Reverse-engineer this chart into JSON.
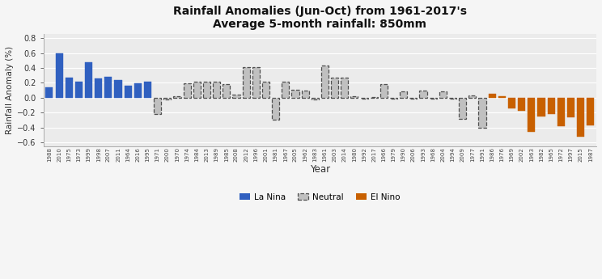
{
  "title_line1": "Rainfall Anomalies (Jun-Oct) from 1961-2017's",
  "title_line2": "Average 5-month rainfall: 850mm",
  "xlabel": "Year",
  "ylabel": "Rainfall Anomaly (%)",
  "ylim": [
    -0.65,
    0.85
  ],
  "yticks": [
    -0.6,
    -0.4,
    -0.2,
    0.0,
    0.2,
    0.4,
    0.6,
    0.8
  ],
  "background_color": "#ebebeb",
  "fig_facecolor": "#f5f5f5",
  "la_nina_color": "#3060c0",
  "el_nino_color": "#c86000",
  "neutral_facecolor": "#c0c0c0",
  "neutral_edgecolor": "#505050",
  "bars": [
    {
      "year": "1988",
      "value": 0.14,
      "type": "la_nina"
    },
    {
      "year": "2010",
      "value": 0.6,
      "type": "la_nina"
    },
    {
      "year": "1975",
      "value": 0.27,
      "type": "la_nina"
    },
    {
      "year": "1973",
      "value": 0.21,
      "type": "la_nina"
    },
    {
      "year": "1999",
      "value": 0.47,
      "type": "la_nina"
    },
    {
      "year": "1998",
      "value": 0.26,
      "type": "la_nina"
    },
    {
      "year": "2007",
      "value": 0.28,
      "type": "la_nina"
    },
    {
      "year": "2011",
      "value": 0.24,
      "type": "la_nina"
    },
    {
      "year": "1964",
      "value": 0.16,
      "type": "la_nina"
    },
    {
      "year": "2016",
      "value": 0.19,
      "type": "la_nina"
    },
    {
      "year": "1995",
      "value": 0.22,
      "type": "la_nina"
    },
    {
      "year": "1971",
      "value": -0.22,
      "type": "neutral"
    },
    {
      "year": "2000",
      "value": -0.02,
      "type": "neutral"
    },
    {
      "year": "1970",
      "value": 0.02,
      "type": "neutral"
    },
    {
      "year": "1974",
      "value": 0.19,
      "type": "neutral"
    },
    {
      "year": "1984",
      "value": 0.22,
      "type": "neutral"
    },
    {
      "year": "2013",
      "value": 0.22,
      "type": "neutral"
    },
    {
      "year": "1989",
      "value": 0.21,
      "type": "neutral"
    },
    {
      "year": "1985",
      "value": 0.18,
      "type": "neutral"
    },
    {
      "year": "2008",
      "value": 0.04,
      "type": "neutral"
    },
    {
      "year": "2012",
      "value": 0.41,
      "type": "neutral"
    },
    {
      "year": "1996",
      "value": 0.41,
      "type": "neutral"
    },
    {
      "year": "2001",
      "value": 0.22,
      "type": "neutral"
    },
    {
      "year": "1981",
      "value": -0.3,
      "type": "neutral"
    },
    {
      "year": "1967",
      "value": 0.22,
      "type": "neutral"
    },
    {
      "year": "2005",
      "value": 0.11,
      "type": "neutral"
    },
    {
      "year": "1962",
      "value": 0.1,
      "type": "neutral"
    },
    {
      "year": "1983",
      "value": -0.02,
      "type": "neutral"
    },
    {
      "year": "1961",
      "value": 0.43,
      "type": "neutral"
    },
    {
      "year": "2003",
      "value": 0.27,
      "type": "neutral"
    },
    {
      "year": "2014",
      "value": 0.27,
      "type": "neutral"
    },
    {
      "year": "1980",
      "value": 0.02,
      "type": "neutral"
    },
    {
      "year": "1992",
      "value": -0.01,
      "type": "neutral"
    },
    {
      "year": "2017",
      "value": 0.01,
      "type": "neutral"
    },
    {
      "year": "1966",
      "value": 0.18,
      "type": "neutral"
    },
    {
      "year": "1979",
      "value": -0.01,
      "type": "neutral"
    },
    {
      "year": "1990",
      "value": 0.09,
      "type": "neutral"
    },
    {
      "year": "2006",
      "value": -0.01,
      "type": "neutral"
    },
    {
      "year": "1993",
      "value": 0.1,
      "type": "neutral"
    },
    {
      "year": "1968",
      "value": -0.01,
      "type": "neutral"
    },
    {
      "year": "2004",
      "value": 0.08,
      "type": "neutral"
    },
    {
      "year": "1994",
      "value": -0.01,
      "type": "neutral"
    },
    {
      "year": "2009",
      "value": -0.28,
      "type": "neutral"
    },
    {
      "year": "1977",
      "value": 0.03,
      "type": "neutral"
    },
    {
      "year": "1991",
      "value": -0.4,
      "type": "neutral"
    },
    {
      "year": "1986",
      "value": 0.05,
      "type": "el_nino"
    },
    {
      "year": "1976",
      "value": 0.02,
      "type": "el_nino"
    },
    {
      "year": "1969",
      "value": -0.14,
      "type": "el_nino"
    },
    {
      "year": "2002",
      "value": -0.18,
      "type": "el_nino"
    },
    {
      "year": "1963",
      "value": -0.46,
      "type": "el_nino"
    },
    {
      "year": "1982",
      "value": -0.25,
      "type": "el_nino"
    },
    {
      "year": "1965",
      "value": -0.22,
      "type": "el_nino"
    },
    {
      "year": "1972",
      "value": -0.38,
      "type": "el_nino"
    },
    {
      "year": "1997",
      "value": -0.26,
      "type": "el_nino"
    },
    {
      "year": "2015",
      "value": -0.52,
      "type": "el_nino"
    },
    {
      "year": "1987",
      "value": -0.37,
      "type": "el_nino"
    }
  ]
}
